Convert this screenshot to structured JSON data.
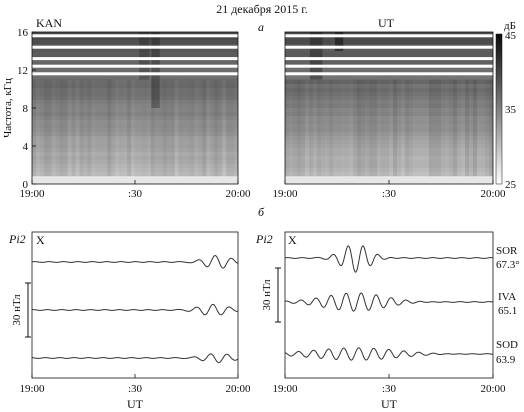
{
  "figure": {
    "title": "21 декабря 2015 г.",
    "panel_a_label": "а",
    "panel_b_label": "б"
  },
  "spectrograms": {
    "ylabel": "Частота, кГц",
    "yticks": [
      "0",
      "4",
      "8",
      "12",
      "16"
    ],
    "xticks": [
      "19:00",
      ":30",
      "20:00"
    ],
    "colorbar_unit": "дБ",
    "colorbar_ticks": [
      "45",
      "35",
      "25"
    ],
    "panels": [
      {
        "station": "KAN"
      },
      {
        "station": "UT"
      }
    ]
  },
  "pulsations": {
    "pi_label": "Pi2",
    "component": "X",
    "scale": "30 нТл",
    "xticks": [
      "19:00",
      ":30",
      "20:00"
    ],
    "xlabel": "UT",
    "left_panel": {
      "traces": 3
    },
    "right_panel": {
      "stations": [
        {
          "code": "SOR",
          "lat": "67.3°"
        },
        {
          "code": "IVA",
          "lat": "65.1"
        },
        {
          "code": "SOD",
          "lat": "63.9"
        }
      ]
    }
  },
  "chart_data": [
    {
      "type": "heatmap",
      "title": "KAN",
      "ylabel": "Частота, кГц",
      "ylim": [
        0,
        16
      ],
      "xlim": [
        "19:00",
        "20:00"
      ],
      "colorbar": {
        "unit": "дБ",
        "range": [
          25,
          45
        ]
      },
      "horizontal_bands_khz": [
        11.6,
        12.4,
        13.2,
        14.4,
        15.6
      ]
    },
    {
      "type": "heatmap",
      "title": "UT",
      "ylim": [
        0,
        16
      ],
      "xlim": [
        "19:00",
        "20:00"
      ],
      "colorbar": {
        "unit": "дБ",
        "range": [
          25,
          45
        ]
      },
      "horizontal_bands_khz": [
        11.6,
        12.4,
        13.2,
        14.4,
        15.6
      ]
    },
    {
      "type": "line",
      "title": "Pi2 X",
      "xlim": [
        "19:00",
        "20:00"
      ],
      "series": [
        {
          "values": []
        },
        {
          "values": []
        },
        {
          "values": []
        }
      ]
    },
    {
      "type": "line",
      "title": "Pi2 X",
      "xlim": [
        "19:00",
        "20:00"
      ],
      "series": [
        {
          "name": "SOR 67.3°",
          "values": []
        },
        {
          "name": "IVA 65.1",
          "values": []
        },
        {
          "name": "SOD 63.9",
          "values": []
        }
      ]
    }
  ]
}
